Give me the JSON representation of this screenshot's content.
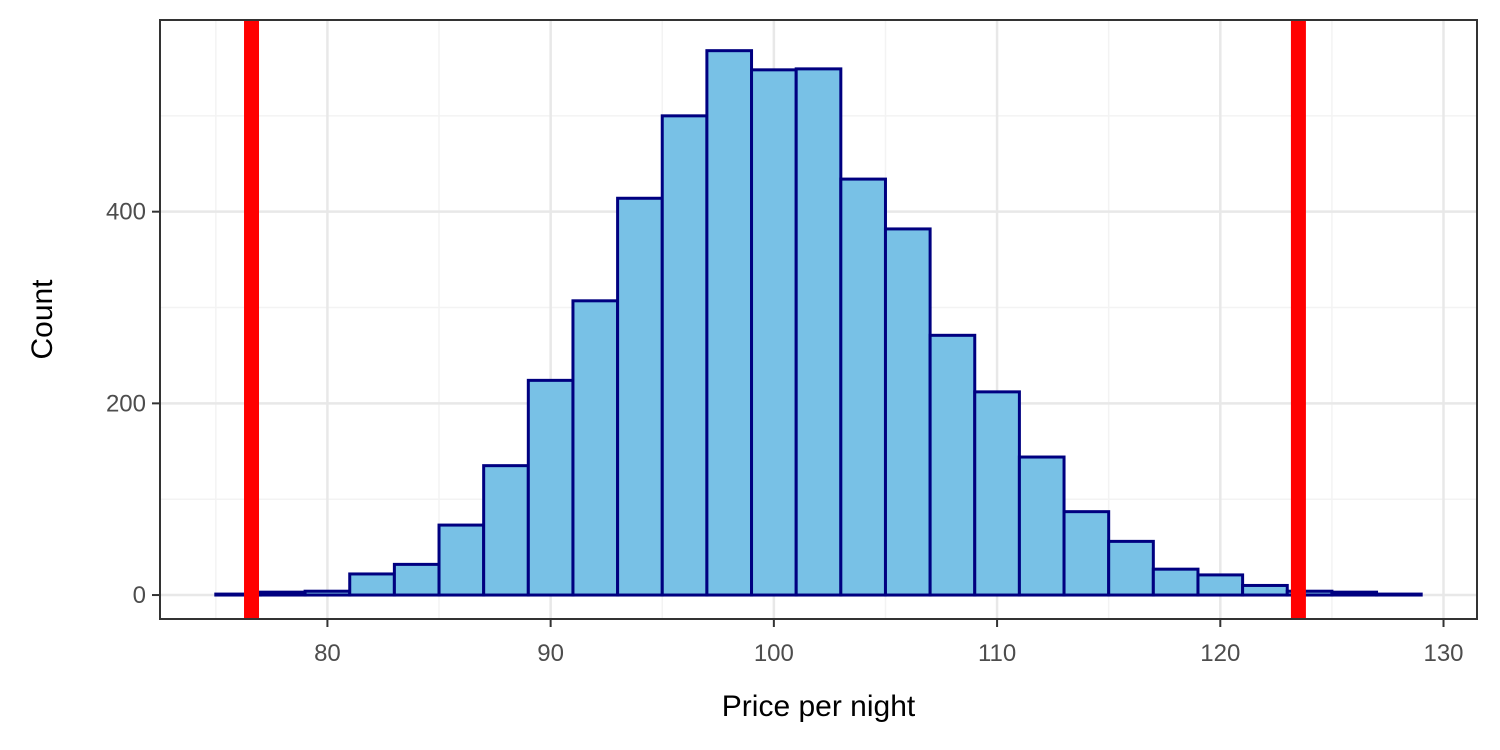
{
  "chart_data": {
    "type": "bar",
    "subtype": "histogram",
    "xlabel": "Price per night",
    "ylabel": "Count",
    "xlim": [
      72.5,
      131.5
    ],
    "ylim": [
      -25,
      600
    ],
    "x_ticks": [
      80,
      90,
      100,
      110,
      120,
      130
    ],
    "y_ticks": [
      0,
      200,
      400
    ],
    "grid": true,
    "bin_width": 2,
    "bins": [
      {
        "start": 75,
        "end": 77,
        "count": 1
      },
      {
        "start": 77,
        "end": 79,
        "count": 3
      },
      {
        "start": 79,
        "end": 81,
        "count": 4
      },
      {
        "start": 81,
        "end": 83,
        "count": 22
      },
      {
        "start": 83,
        "end": 85,
        "count": 32
      },
      {
        "start": 85,
        "end": 87,
        "count": 73
      },
      {
        "start": 87,
        "end": 89,
        "count": 135
      },
      {
        "start": 89,
        "end": 91,
        "count": 224
      },
      {
        "start": 91,
        "end": 93,
        "count": 307
      },
      {
        "start": 93,
        "end": 95,
        "count": 414
      },
      {
        "start": 95,
        "end": 97,
        "count": 500
      },
      {
        "start": 97,
        "end": 99,
        "count": 568
      },
      {
        "start": 99,
        "end": 101,
        "count": 548
      },
      {
        "start": 101,
        "end": 103,
        "count": 549
      },
      {
        "start": 103,
        "end": 105,
        "count": 434
      },
      {
        "start": 105,
        "end": 107,
        "count": 382
      },
      {
        "start": 107,
        "end": 109,
        "count": 271
      },
      {
        "start": 109,
        "end": 111,
        "count": 212
      },
      {
        "start": 111,
        "end": 113,
        "count": 144
      },
      {
        "start": 113,
        "end": 115,
        "count": 87
      },
      {
        "start": 115,
        "end": 117,
        "count": 56
      },
      {
        "start": 117,
        "end": 119,
        "count": 27
      },
      {
        "start": 119,
        "end": 121,
        "count": 21
      },
      {
        "start": 121,
        "end": 123,
        "count": 10
      },
      {
        "start": 123,
        "end": 125,
        "count": 4
      },
      {
        "start": 125,
        "end": 127,
        "count": 3
      },
      {
        "start": 127,
        "end": 129,
        "count": 1
      }
    ],
    "vlines": [
      76.6,
      123.5
    ],
    "colors": {
      "bar_fill": "#78c1e6",
      "bar_outline": "#000080",
      "vline": "#ff0000",
      "grid_major": "#e8e8e8",
      "grid_minor": "#f3f3f3",
      "panel_border": "#333333",
      "tick_text": "#4d4d4d"
    }
  }
}
